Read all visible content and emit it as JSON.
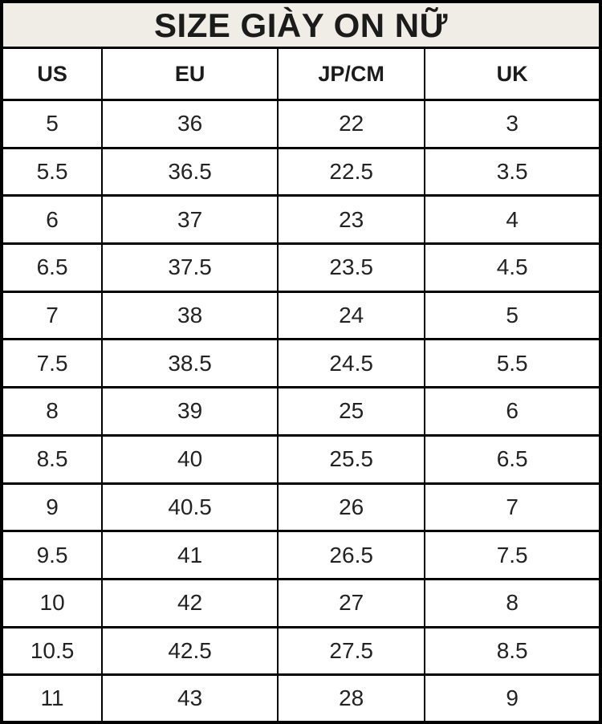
{
  "chart_data": {
    "type": "table",
    "title": "SIZE GIÀY ON NỮ",
    "columns": [
      "US",
      "EU",
      "JP/CM",
      "UK"
    ],
    "rows": [
      [
        "5",
        "36",
        "22",
        "3"
      ],
      [
        "5.5",
        "36.5",
        "22.5",
        "3.5"
      ],
      [
        "6",
        "37",
        "23",
        "4"
      ],
      [
        "6.5",
        "37.5",
        "23.5",
        "4.5"
      ],
      [
        "7",
        "38",
        "24",
        "5"
      ],
      [
        "7.5",
        "38.5",
        "24.5",
        "5.5"
      ],
      [
        "8",
        "39",
        "25",
        "6"
      ],
      [
        "8.5",
        "40",
        "25.5",
        "6.5"
      ],
      [
        "9",
        "40.5",
        "26",
        "7"
      ],
      [
        "9.5",
        "41",
        "26.5",
        "7.5"
      ],
      [
        "10",
        "42",
        "27",
        "8"
      ],
      [
        "10.5",
        "42.5",
        "27.5",
        "8.5"
      ],
      [
        "11",
        "43",
        "28",
        "9"
      ]
    ]
  },
  "colors": {
    "title_bg": "#f0ede6",
    "border": "#000000",
    "cell_bg": "#ffffff",
    "title_text": "#1b1b1b",
    "cell_text": "#232323"
  }
}
